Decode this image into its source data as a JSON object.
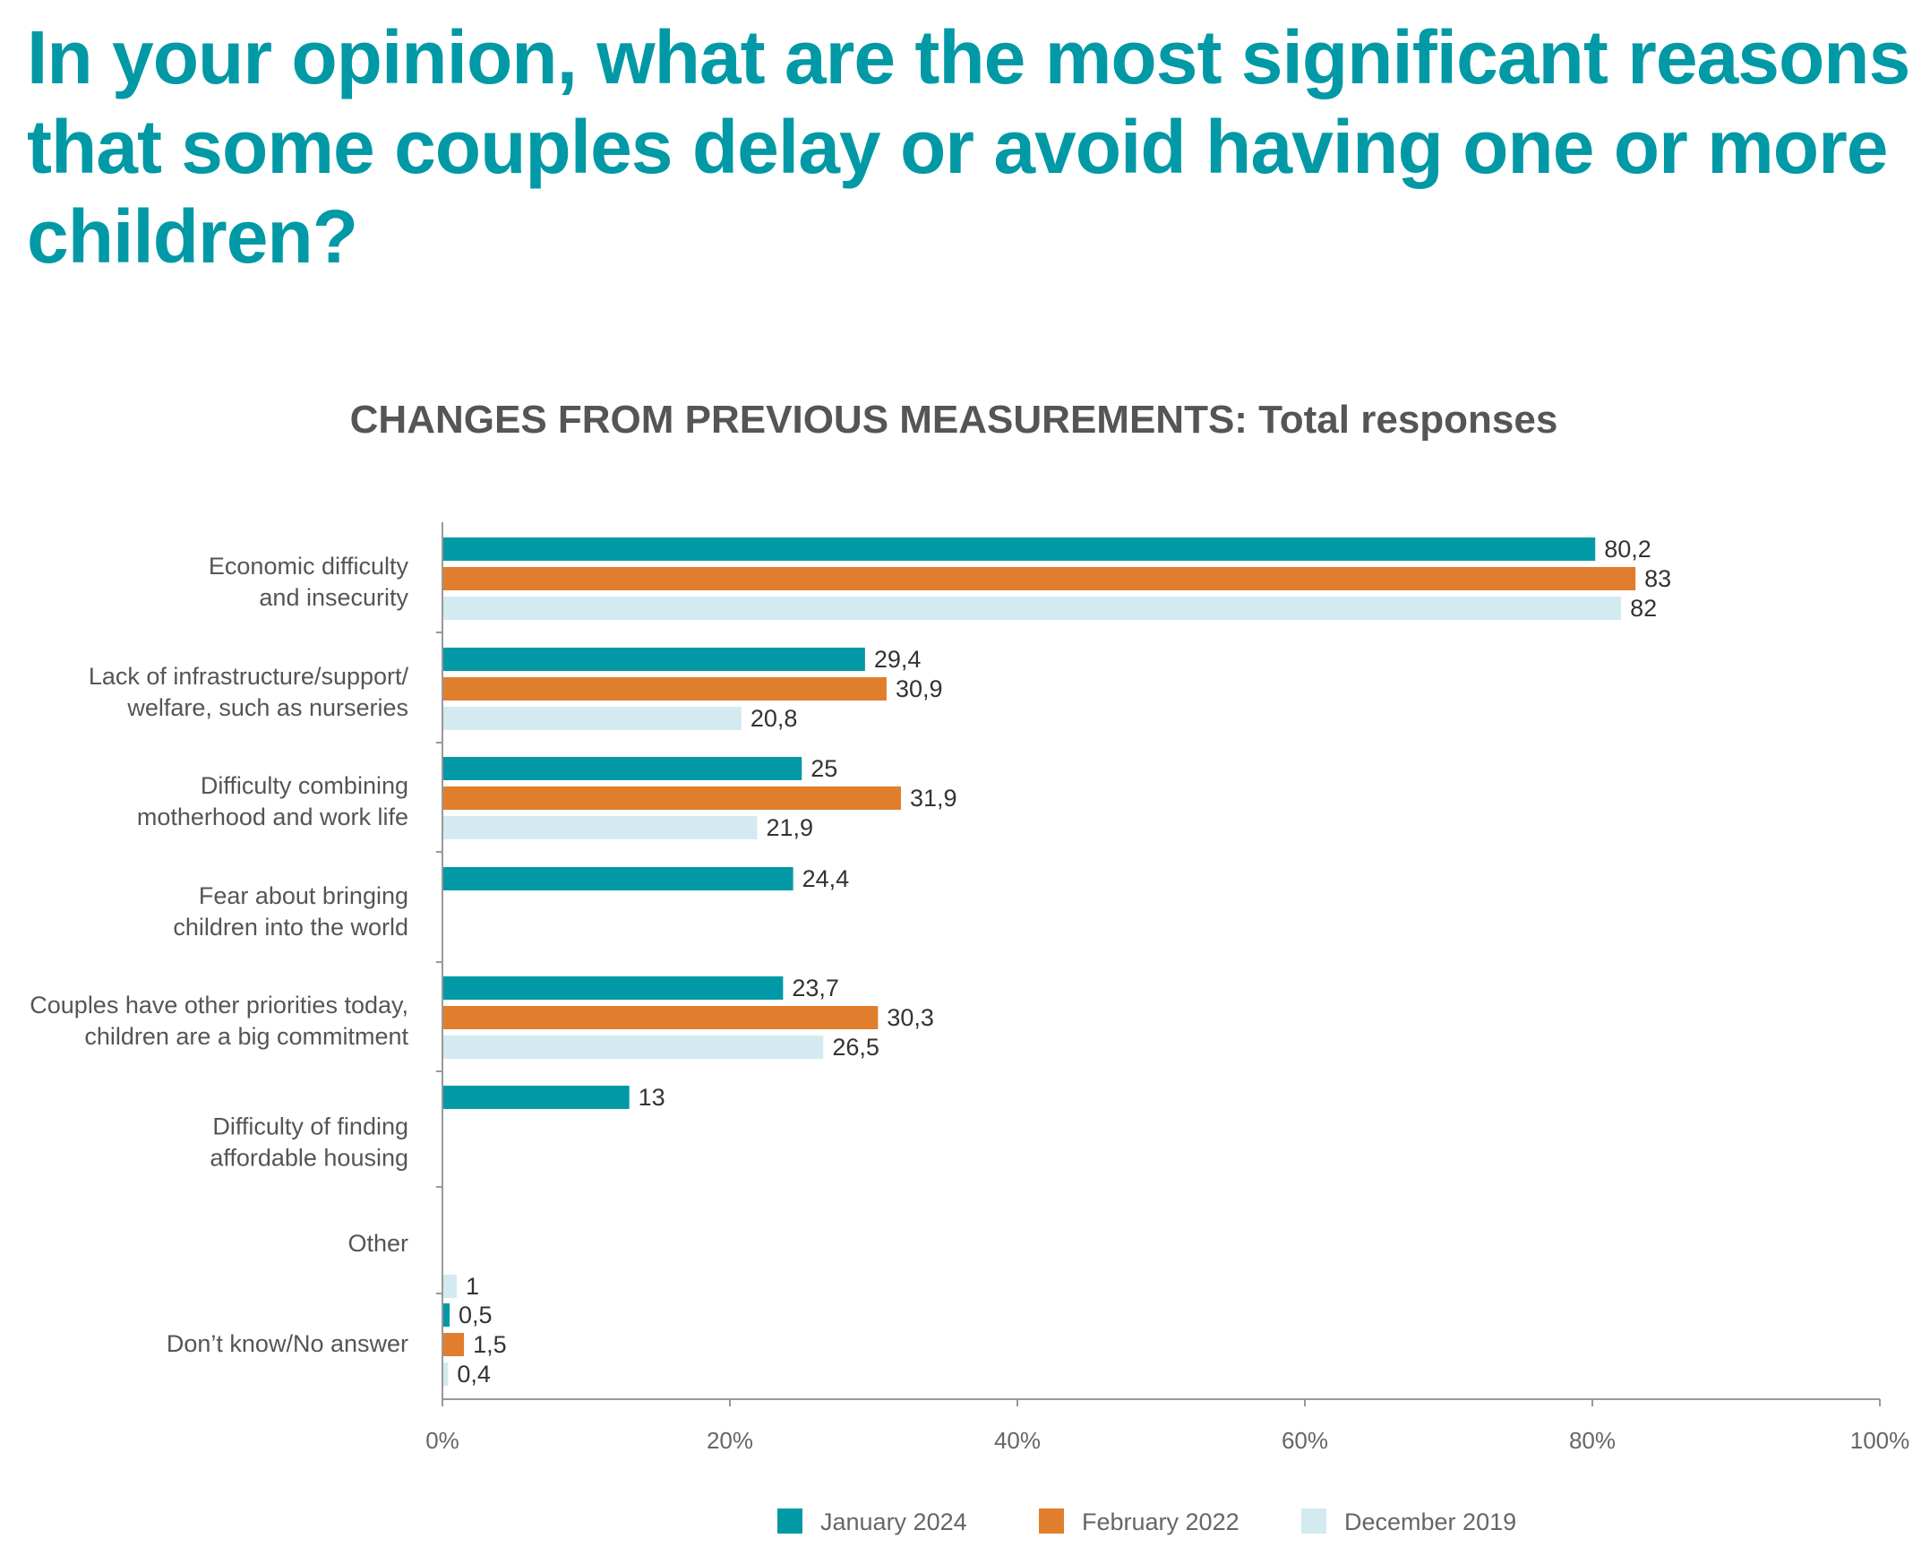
{
  "headline": {
    "lines": [
      "In your opinion, what are the most significant reasons",
      "that some couples delay or avoid having one or more",
      "children?"
    ]
  },
  "chart_data": {
    "type": "bar",
    "orientation": "horizontal",
    "title": "CHANGES FROM PREVIOUS MEASUREMENTS: Total responses",
    "categories": [
      [
        "Economic difficulty",
        "and insecurity"
      ],
      [
        "Lack of infrastructure/support/",
        "welfare, such as nurseries"
      ],
      [
        "Difficulty combining",
        "motherhood and work life"
      ],
      [
        "Fear about bringing",
        "children into the world"
      ],
      [
        "Couples have other priorities today,",
        "children are a big commitment"
      ],
      [
        "Difficulty of finding",
        "affordable housing"
      ],
      [
        "Other"
      ],
      [
        "Don’t know/No answer"
      ]
    ],
    "series": [
      {
        "name": "January 2024",
        "color": "#0099a5",
        "values": [
          80.2,
          29.4,
          25,
          24.4,
          23.7,
          13,
          null,
          0.5
        ],
        "labels": [
          "80,2",
          "29,4",
          "25",
          "24,4",
          "23,7",
          "13",
          null,
          "0,5"
        ]
      },
      {
        "name": "February 2022",
        "color": "#e07e2e",
        "values": [
          83,
          30.9,
          31.9,
          null,
          30.3,
          null,
          null,
          1.5
        ],
        "labels": [
          "83",
          "30,9",
          "31,9",
          null,
          "30,3",
          null,
          null,
          "1,5"
        ]
      },
      {
        "name": "December 2019",
        "color": "#d3ebf0",
        "values": [
          82,
          20.8,
          21.9,
          null,
          26.5,
          null,
          1,
          0.4
        ],
        "labels": [
          "82",
          "20,8",
          "21,9",
          null,
          "26,5",
          null,
          "1",
          "0,4"
        ]
      }
    ],
    "xlim": [
      0,
      100
    ],
    "xticks": [
      "0%",
      "20%",
      "40%",
      "60%",
      "80%",
      "100%"
    ],
    "grid": false,
    "legend_position": "bottom"
  }
}
